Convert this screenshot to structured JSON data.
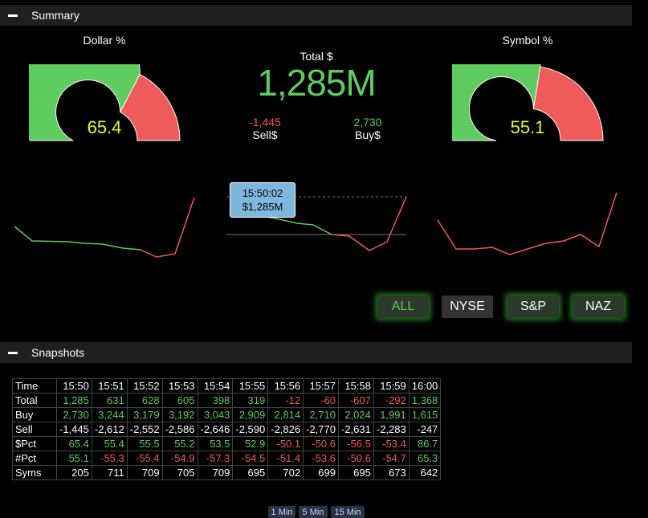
{
  "summary": {
    "title": "Summary",
    "dollar_gauge": {
      "title": "Dollar %",
      "value": "65.4",
      "pct": 65.4
    },
    "symbol_gauge": {
      "title": "Symbol %",
      "value": "55.1",
      "pct": 55.1
    },
    "total_label": "Total $",
    "total_value": "1,285M",
    "sell_value": "-1,445",
    "sell_label": "Sell$",
    "buy_value": "2,730",
    "buy_label": "Buy$",
    "tooltip": {
      "time": "15:50:02",
      "value": "$1,285M"
    }
  },
  "filters": [
    "ALL",
    "NYSE",
    "S&P",
    "NAZ"
  ],
  "snapshots": {
    "title": "Snapshots",
    "columns": [
      "Time",
      "15:50",
      "15:51",
      "15:52",
      "15:53",
      "15:54",
      "15:55",
      "15:56",
      "15:57",
      "15:58",
      "15:59",
      "16:00"
    ],
    "rows": [
      {
        "label": "Total",
        "values": [
          "1,285",
          "631",
          "628",
          "605",
          "398",
          "319",
          "-12",
          "-60",
          "-607",
          "-292",
          "1,368"
        ],
        "colors": [
          "pos",
          "pos",
          "pos",
          "pos",
          "pos",
          "pos",
          "neg",
          "neg",
          "neg",
          "neg",
          "pos"
        ]
      },
      {
        "label": "Buy",
        "values": [
          "2,730",
          "3,244",
          "3,179",
          "3,192",
          "3,043",
          "2,909",
          "2,814",
          "2,710",
          "2,024",
          "1,991",
          "1,615"
        ],
        "colors": [
          "pos",
          "pos",
          "pos",
          "pos",
          "pos",
          "pos",
          "pos",
          "pos",
          "pos",
          "pos",
          "pos"
        ]
      },
      {
        "label": "Sell",
        "values": [
          "-1,445",
          "-2,612",
          "-2,552",
          "-2,586",
          "-2,646",
          "-2,590",
          "-2,826",
          "-2,770",
          "-2,631",
          "-2,283",
          "-247"
        ],
        "colors": [
          "",
          "",
          "",
          "",
          "",
          "",
          "",
          "",
          "",
          "",
          ""
        ]
      },
      {
        "label": "$Pct",
        "values": [
          "65.4",
          "55.4",
          "55.5",
          "55.2",
          "53.5",
          "52.9",
          "-50.1",
          "-50.6",
          "-56.5",
          "-53.4",
          "86.7"
        ],
        "colors": [
          "pos",
          "pos",
          "pos",
          "pos",
          "pos",
          "pos",
          "neg",
          "neg",
          "neg",
          "neg",
          "pos"
        ]
      },
      {
        "label": "#Pct",
        "values": [
          "55.1",
          "-55.3",
          "-55.4",
          "-54.9",
          "-57.3",
          "-54.5",
          "-51.4",
          "-53.6",
          "-50.6",
          "-54.7",
          "65.3"
        ],
        "colors": [
          "pos",
          "neg",
          "neg",
          "neg",
          "neg",
          "neg",
          "neg",
          "neg",
          "neg",
          "neg",
          "pos"
        ]
      },
      {
        "label": "Syms",
        "values": [
          "205",
          "711",
          "709",
          "705",
          "709",
          "695",
          "702",
          "699",
          "695",
          "673",
          "642"
        ],
        "colors": [
          "",
          "",
          "",
          "",
          "",
          "",
          "",
          "",
          "",
          "",
          ""
        ]
      }
    ]
  },
  "intervals": [
    "1 Min",
    "5 Min",
    "15 Min"
  ],
  "colors": {
    "green": "#5ecb5e",
    "red": "#ef5a5a",
    "gauge_text": "#d4ff1f"
  }
}
